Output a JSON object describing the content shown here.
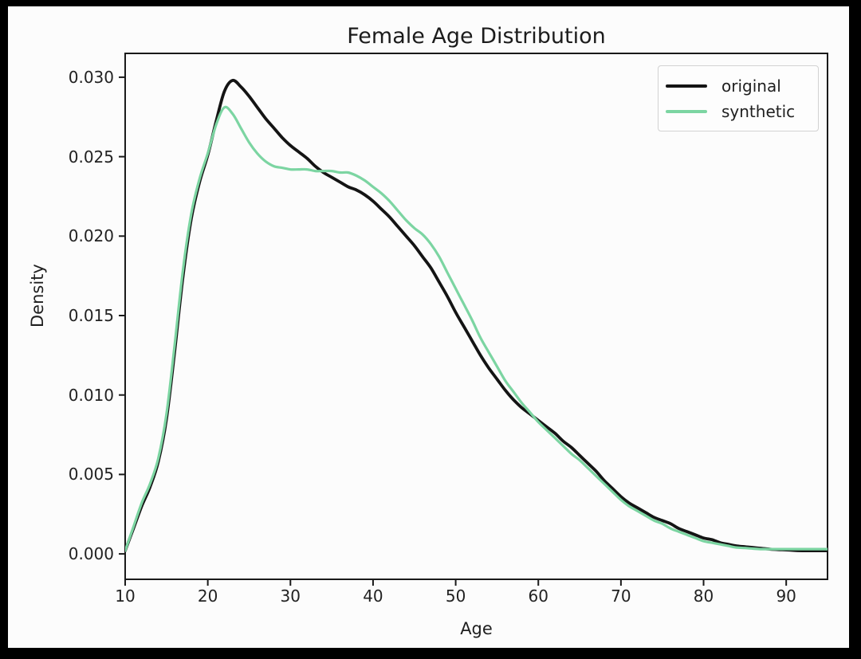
{
  "figure": {
    "title": "Female Age Distribution",
    "xlabel": "Age",
    "ylabel": "Density",
    "background": "#fcfcfc",
    "frame_color": "#1a1a1a",
    "border_color": "#000000"
  },
  "legend": {
    "position": "upper right",
    "items": [
      {
        "label": "original",
        "color": "#141414"
      },
      {
        "label": "synthetic",
        "color": "#7cd5a2"
      }
    ]
  },
  "chart_data": {
    "type": "line",
    "title": "Female Age Distribution",
    "xlabel": "Age",
    "ylabel": "Density",
    "xlim": [
      10,
      95
    ],
    "ylim": [
      -0.0016,
      0.0315
    ],
    "grid": false,
    "legend_position": "upper right",
    "xticks": [
      {
        "v": 10,
        "label": "10"
      },
      {
        "v": 20,
        "label": "20"
      },
      {
        "v": 30,
        "label": "30"
      },
      {
        "v": 40,
        "label": "40"
      },
      {
        "v": 50,
        "label": "50"
      },
      {
        "v": 60,
        "label": "60"
      },
      {
        "v": 70,
        "label": "70"
      },
      {
        "v": 80,
        "label": "80"
      },
      {
        "v": 90,
        "label": "90"
      }
    ],
    "yticks": [
      {
        "v": 0.0,
        "label": "0.000"
      },
      {
        "v": 0.005,
        "label": "0.005"
      },
      {
        "v": 0.01,
        "label": "0.010"
      },
      {
        "v": 0.015,
        "label": "0.015"
      },
      {
        "v": 0.02,
        "label": "0.020"
      },
      {
        "v": 0.025,
        "label": "0.025"
      },
      {
        "v": 0.03,
        "label": "0.030"
      }
    ],
    "series": [
      {
        "name": "original",
        "color": "#141414",
        "line_width": 3.8,
        "points": [
          [
            10,
            0.0002
          ],
          [
            11,
            0.0016
          ],
          [
            12,
            0.003
          ],
          [
            13,
            0.0042
          ],
          [
            14,
            0.0058
          ],
          [
            15,
            0.0085
          ],
          [
            16,
            0.0128
          ],
          [
            17,
            0.0175
          ],
          [
            18,
            0.0211
          ],
          [
            19,
            0.0234
          ],
          [
            20,
            0.0251
          ],
          [
            21,
            0.0272
          ],
          [
            22,
            0.0291
          ],
          [
            23,
            0.0298
          ],
          [
            24,
            0.0294
          ],
          [
            25,
            0.0288
          ],
          [
            26,
            0.0281
          ],
          [
            27,
            0.0274
          ],
          [
            28,
            0.0268
          ],
          [
            29,
            0.0262
          ],
          [
            30,
            0.0257
          ],
          [
            31,
            0.0253
          ],
          [
            32,
            0.0249
          ],
          [
            33,
            0.0244
          ],
          [
            34,
            0.024
          ],
          [
            35,
            0.0237
          ],
          [
            36,
            0.0234
          ],
          [
            37,
            0.0231
          ],
          [
            38,
            0.0229
          ],
          [
            39,
            0.0226
          ],
          [
            40,
            0.0222
          ],
          [
            41,
            0.0217
          ],
          [
            42,
            0.0212
          ],
          [
            43,
            0.0206
          ],
          [
            44,
            0.02
          ],
          [
            45,
            0.0194
          ],
          [
            46,
            0.0187
          ],
          [
            47,
            0.018
          ],
          [
            48,
            0.0171
          ],
          [
            49,
            0.0162
          ],
          [
            50,
            0.0152
          ],
          [
            51,
            0.0143
          ],
          [
            52,
            0.0134
          ],
          [
            53,
            0.0125
          ],
          [
            54,
            0.0117
          ],
          [
            55,
            0.011
          ],
          [
            56,
            0.0103
          ],
          [
            57,
            0.0097
          ],
          [
            58,
            0.0092
          ],
          [
            59,
            0.0088
          ],
          [
            60,
            0.0084
          ],
          [
            61,
            0.008
          ],
          [
            62,
            0.0076
          ],
          [
            63,
            0.0071
          ],
          [
            64,
            0.0067
          ],
          [
            65,
            0.0062
          ],
          [
            66,
            0.0057
          ],
          [
            67,
            0.0052
          ],
          [
            68,
            0.0046
          ],
          [
            69,
            0.0041
          ],
          [
            70,
            0.0036
          ],
          [
            71,
            0.0032
          ],
          [
            72,
            0.0029
          ],
          [
            73,
            0.0026
          ],
          [
            74,
            0.0023
          ],
          [
            75,
            0.0021
          ],
          [
            76,
            0.0019
          ],
          [
            77,
            0.0016
          ],
          [
            78,
            0.0014
          ],
          [
            79,
            0.0012
          ],
          [
            80,
            0.001
          ],
          [
            81,
            0.0009
          ],
          [
            82,
            0.0007
          ],
          [
            83,
            0.0006
          ],
          [
            84,
            0.0005
          ],
          [
            85,
            0.00045
          ],
          [
            86,
            0.0004
          ],
          [
            87,
            0.00035
          ],
          [
            88,
            0.0003
          ],
          [
            89,
            0.00027
          ],
          [
            90,
            0.00025
          ],
          [
            91,
            0.00022
          ],
          [
            92,
            0.0002
          ],
          [
            93,
            0.0002
          ],
          [
            94,
            0.0002
          ],
          [
            95,
            0.0002
          ]
        ]
      },
      {
        "name": "synthetic",
        "color": "#7cd5a2",
        "line_width": 3.2,
        "points": [
          [
            10,
            0.0002
          ],
          [
            11,
            0.0017
          ],
          [
            12,
            0.0032
          ],
          [
            13,
            0.0044
          ],
          [
            14,
            0.006
          ],
          [
            15,
            0.0088
          ],
          [
            16,
            0.0132
          ],
          [
            17,
            0.0179
          ],
          [
            18,
            0.0214
          ],
          [
            19,
            0.0236
          ],
          [
            20,
            0.0252
          ],
          [
            21,
            0.027
          ],
          [
            22,
            0.0281
          ],
          [
            23,
            0.0277
          ],
          [
            24,
            0.0268
          ],
          [
            25,
            0.0259
          ],
          [
            26,
            0.0252
          ],
          [
            27,
            0.0247
          ],
          [
            28,
            0.0244
          ],
          [
            29,
            0.0243
          ],
          [
            30,
            0.0242
          ],
          [
            31,
            0.0242
          ],
          [
            32,
            0.0242
          ],
          [
            33,
            0.0241
          ],
          [
            34,
            0.0241
          ],
          [
            35,
            0.0241
          ],
          [
            36,
            0.024
          ],
          [
            37,
            0.024
          ],
          [
            38,
            0.0238
          ],
          [
            39,
            0.0235
          ],
          [
            40,
            0.0231
          ],
          [
            41,
            0.0227
          ],
          [
            42,
            0.0222
          ],
          [
            43,
            0.0216
          ],
          [
            44,
            0.021
          ],
          [
            45,
            0.0205
          ],
          [
            46,
            0.0201
          ],
          [
            47,
            0.0195
          ],
          [
            48,
            0.0187
          ],
          [
            49,
            0.0177
          ],
          [
            50,
            0.0167
          ],
          [
            51,
            0.0157
          ],
          [
            52,
            0.0147
          ],
          [
            53,
            0.0136
          ],
          [
            54,
            0.0127
          ],
          [
            55,
            0.0118
          ],
          [
            56,
            0.0109
          ],
          [
            57,
            0.0102
          ],
          [
            58,
            0.0095
          ],
          [
            59,
            0.0089
          ],
          [
            60,
            0.0083
          ],
          [
            61,
            0.0078
          ],
          [
            62,
            0.0073
          ],
          [
            63,
            0.0068
          ],
          [
            64,
            0.0063
          ],
          [
            65,
            0.0059
          ],
          [
            66,
            0.0054
          ],
          [
            67,
            0.0049
          ],
          [
            68,
            0.0044
          ],
          [
            69,
            0.0039
          ],
          [
            70,
            0.0034
          ],
          [
            71,
            0.003
          ],
          [
            72,
            0.0027
          ],
          [
            73,
            0.0024
          ],
          [
            74,
            0.0021
          ],
          [
            75,
            0.0019
          ],
          [
            76,
            0.0016
          ],
          [
            77,
            0.0014
          ],
          [
            78,
            0.0012
          ],
          [
            79,
            0.001
          ],
          [
            80,
            0.0008
          ],
          [
            81,
            0.0007
          ],
          [
            82,
            0.0006
          ],
          [
            83,
            0.0005
          ],
          [
            84,
            0.0004
          ],
          [
            85,
            0.00037
          ],
          [
            86,
            0.00033
          ],
          [
            87,
            0.0003
          ],
          [
            88,
            0.0003
          ],
          [
            89,
            0.0003
          ],
          [
            90,
            0.0003
          ],
          [
            91,
            0.0003
          ],
          [
            92,
            0.0003
          ],
          [
            93,
            0.0003
          ],
          [
            94,
            0.0003
          ],
          [
            95,
            0.0003
          ]
        ]
      }
    ]
  }
}
